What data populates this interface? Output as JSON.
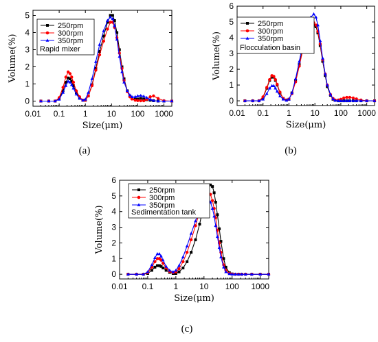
{
  "chart_data": [
    {
      "type": "line",
      "panel_label": "(a)",
      "xlabel": "Size(μm)",
      "ylabel": "Volume(%)",
      "xscale": "log",
      "xlim": [
        0.01,
        2000
      ],
      "ylim": [
        -0.3,
        5.3
      ],
      "x_ticks": [
        "0.01",
        "0.1",
        "1",
        "10",
        "100",
        "1000"
      ],
      "y_ticks": [
        "0",
        "1",
        "2",
        "3",
        "4",
        "5"
      ],
      "legend_title": "Rapid mixer",
      "series": [
        {
          "name": "250rpm",
          "color": "#000000",
          "marker": "square",
          "x": [
            0.02,
            0.04,
            0.07,
            0.1,
            0.14,
            0.18,
            0.22,
            0.26,
            0.3,
            0.35,
            0.45,
            0.6,
            0.8,
            1,
            1.3,
            1.8,
            2.5,
            3.5,
            5,
            7,
            9,
            11,
            13,
            16,
            20,
            25,
            30,
            40,
            50,
            60,
            80,
            100,
            130,
            170,
            220,
            300,
            400,
            600,
            1000,
            2000
          ],
          "y": [
            0,
            0,
            0,
            0.15,
            0.6,
            1.1,
            1.35,
            1.3,
            1.15,
            0.9,
            0.5,
            0.2,
            0.05,
            0.05,
            0.3,
            0.95,
            1.9,
            2.9,
            3.8,
            4.6,
            5.0,
            5.0,
            4.7,
            4.0,
            3.0,
            2.0,
            1.3,
            0.6,
            0.3,
            0.15,
            0.1,
            0.12,
            0.15,
            0.12,
            0.08,
            0.05,
            0.02,
            0,
            0,
            0
          ]
        },
        {
          "name": "300rpm",
          "color": "#ff0000",
          "marker": "circle",
          "x": [
            0.02,
            0.04,
            0.07,
            0.1,
            0.14,
            0.18,
            0.22,
            0.26,
            0.3,
            0.35,
            0.45,
            0.6,
            0.8,
            1,
            1.3,
            1.8,
            2.5,
            3.5,
            5,
            7,
            9,
            11,
            13,
            16,
            20,
            25,
            30,
            40,
            50,
            60,
            80,
            100,
            130,
            170,
            220,
            300,
            400,
            600,
            1000,
            2000
          ],
          "y": [
            0,
            0,
            0,
            0.2,
            0.8,
            1.4,
            1.7,
            1.6,
            1.4,
            1.1,
            0.6,
            0.25,
            0.05,
            0.05,
            0.3,
            0.9,
            1.8,
            2.7,
            3.5,
            4.2,
            4.6,
            4.6,
            4.3,
            3.7,
            2.8,
            1.9,
            1.2,
            0.55,
            0.25,
            0.12,
            0.05,
            0.03,
            0.02,
            0.02,
            0.1,
            0.25,
            0.3,
            0.15,
            0.02,
            0
          ]
        },
        {
          "name": "350rpm",
          "color": "#0000ff",
          "marker": "triangle",
          "x": [
            0.02,
            0.04,
            0.07,
            0.1,
            0.14,
            0.18,
            0.22,
            0.26,
            0.3,
            0.35,
            0.45,
            0.6,
            0.8,
            1,
            1.3,
            1.8,
            2.5,
            3.5,
            5,
            7,
            9,
            11,
            13,
            16,
            20,
            25,
            30,
            40,
            50,
            60,
            80,
            100,
            130,
            170,
            220,
            300,
            400,
            600,
            1000,
            2000
          ],
          "y": [
            0,
            0,
            0,
            0.1,
            0.5,
            0.9,
            1.15,
            1.1,
            0.95,
            0.75,
            0.4,
            0.15,
            0.05,
            0.1,
            0.5,
            1.3,
            2.3,
            3.3,
            4.1,
            4.7,
            4.9,
            4.8,
            4.4,
            3.6,
            2.6,
            1.7,
            1.1,
            0.6,
            0.35,
            0.25,
            0.25,
            0.3,
            0.32,
            0.28,
            0.2,
            0.1,
            0.03,
            0,
            0,
            0
          ]
        }
      ]
    },
    {
      "type": "line",
      "panel_label": "(b)",
      "xlabel": "Size(μm)",
      "ylabel": "Volume(%)",
      "xscale": "log",
      "xlim": [
        0.01,
        2000
      ],
      "ylim": [
        -0.3,
        6
      ],
      "x_ticks": [
        "0.01",
        "0.1",
        "1",
        "10",
        "100",
        "1000"
      ],
      "y_ticks": [
        "0",
        "1",
        "2",
        "3",
        "4",
        "5",
        "6"
      ],
      "legend_title": "Flocculation basin",
      "series": [
        {
          "name": "250rpm",
          "color": "#000000",
          "marker": "square",
          "x": [
            0.02,
            0.04,
            0.07,
            0.1,
            0.14,
            0.18,
            0.22,
            0.26,
            0.3,
            0.35,
            0.45,
            0.6,
            0.8,
            1,
            1.3,
            1.8,
            2.5,
            3.5,
            5,
            7,
            9,
            11,
            13,
            16,
            20,
            25,
            30,
            40,
            50,
            60,
            80,
            100,
            130,
            170,
            220,
            300,
            400,
            600,
            1000,
            2000
          ],
          "y": [
            0,
            0,
            0,
            0.2,
            0.8,
            1.3,
            1.5,
            1.5,
            1.3,
            1.0,
            0.5,
            0.15,
            0.05,
            0.1,
            0.5,
            1.3,
            2.3,
            3.4,
            4.2,
            4.7,
            4.8,
            4.7,
            4.3,
            3.5,
            2.5,
            1.6,
            0.9,
            0.35,
            0.1,
            0.03,
            0,
            0,
            0,
            0,
            0,
            0,
            0,
            0,
            0,
            0
          ]
        },
        {
          "name": "300rpm",
          "color": "#ff0000",
          "marker": "circle",
          "x": [
            0.02,
            0.04,
            0.07,
            0.1,
            0.14,
            0.18,
            0.22,
            0.26,
            0.3,
            0.35,
            0.45,
            0.6,
            0.8,
            1,
            1.3,
            1.8,
            2.5,
            3.5,
            5,
            7,
            9,
            11,
            13,
            16,
            20,
            25,
            30,
            40,
            50,
            60,
            80,
            100,
            130,
            170,
            220,
            300,
            400,
            600,
            1000,
            2000
          ],
          "y": [
            0,
            0,
            0,
            0.25,
            0.85,
            1.35,
            1.6,
            1.55,
            1.35,
            1.05,
            0.55,
            0.15,
            0.05,
            0.1,
            0.45,
            1.2,
            2.2,
            3.3,
            4.2,
            4.8,
            4.95,
            4.8,
            4.4,
            3.6,
            2.6,
            1.7,
            1.0,
            0.4,
            0.15,
            0.05,
            0.05,
            0.1,
            0.18,
            0.22,
            0.22,
            0.18,
            0.12,
            0.05,
            0,
            0
          ]
        },
        {
          "name": "350rpm",
          "color": "#0000ff",
          "marker": "triangle",
          "x": [
            0.02,
            0.04,
            0.07,
            0.1,
            0.14,
            0.18,
            0.22,
            0.26,
            0.3,
            0.35,
            0.45,
            0.6,
            0.8,
            1,
            1.3,
            1.8,
            2.5,
            3.5,
            5,
            7,
            9,
            11,
            13,
            16,
            20,
            25,
            30,
            40,
            50,
            60,
            80,
            100,
            130,
            170,
            220,
            300,
            400,
            600,
            1000,
            2000
          ],
          "y": [
            0,
            0,
            0,
            0.1,
            0.45,
            0.8,
            0.95,
            0.95,
            0.8,
            0.6,
            0.3,
            0.1,
            0.03,
            0.1,
            0.5,
            1.4,
            2.5,
            3.7,
            4.6,
            5.3,
            5.5,
            5.3,
            4.8,
            3.8,
            2.7,
            1.7,
            1.0,
            0.4,
            0.12,
            0.03,
            0,
            0,
            0,
            0,
            0,
            0,
            0,
            0,
            0,
            0
          ]
        }
      ]
    },
    {
      "type": "line",
      "panel_label": "(c)",
      "xlabel": "Size(μm)",
      "ylabel": "Volume(%)",
      "xscale": "log",
      "xlim": [
        0.01,
        2000
      ],
      "ylim": [
        -0.3,
        6
      ],
      "x_ticks": [
        "0.01",
        "0.1",
        "1",
        "10",
        "100",
        "1000"
      ],
      "y_ticks": [
        "0",
        "1",
        "2",
        "3",
        "4",
        "5",
        "6"
      ],
      "legend_title": "Sedimentation tank",
      "series": [
        {
          "name": "250rpm",
          "color": "#000000",
          "marker": "square",
          "x": [
            0.02,
            0.04,
            0.07,
            0.1,
            0.14,
            0.18,
            0.22,
            0.26,
            0.3,
            0.35,
            0.45,
            0.6,
            0.8,
            1,
            1.3,
            1.8,
            2.5,
            3.5,
            5,
            7,
            9,
            11,
            14,
            17,
            20,
            23,
            26,
            30,
            35,
            40,
            50,
            60,
            80,
            100,
            130,
            170,
            220,
            300,
            500,
            1000,
            2000
          ],
          "y": [
            0,
            0,
            0,
            0.05,
            0.25,
            0.45,
            0.55,
            0.55,
            0.5,
            0.4,
            0.25,
            0.12,
            0.05,
            0.05,
            0.15,
            0.4,
            0.8,
            1.4,
            2.2,
            3.2,
            4.1,
            4.9,
            5.5,
            5.7,
            5.6,
            5.2,
            4.6,
            3.8,
            2.9,
            2.1,
            1.0,
            0.45,
            0.1,
            0.02,
            0,
            0,
            0,
            0,
            0,
            0,
            0
          ]
        },
        {
          "name": "300rpm",
          "color": "#ff0000",
          "marker": "circle",
          "x": [
            0.02,
            0.04,
            0.07,
            0.1,
            0.14,
            0.18,
            0.22,
            0.26,
            0.3,
            0.35,
            0.45,
            0.6,
            0.8,
            1,
            1.3,
            1.8,
            2.5,
            3.5,
            5,
            7,
            9,
            11,
            14,
            17,
            20,
            23,
            26,
            30,
            35,
            40,
            50,
            60,
            80,
            100,
            130,
            170,
            220,
            300,
            500,
            1000,
            2000
          ],
          "y": [
            0,
            0,
            0,
            0.1,
            0.45,
            0.8,
            1.0,
            1.0,
            0.9,
            0.7,
            0.4,
            0.18,
            0.1,
            0.15,
            0.35,
            0.8,
            1.4,
            2.2,
            3.1,
            4.0,
            4.7,
            5.1,
            5.3,
            5.1,
            4.7,
            4.2,
            3.6,
            2.8,
            2.0,
            1.4,
            0.6,
            0.25,
            0.05,
            0.01,
            0,
            0,
            0,
            0,
            0,
            0,
            0
          ]
        },
        {
          "name": "350rpm",
          "color": "#0000ff",
          "marker": "triangle",
          "x": [
            0.02,
            0.04,
            0.07,
            0.1,
            0.14,
            0.18,
            0.22,
            0.26,
            0.3,
            0.35,
            0.45,
            0.6,
            0.8,
            1,
            1.3,
            1.8,
            2.5,
            3.5,
            5,
            7,
            9,
            11,
            14,
            17,
            20,
            23,
            26,
            30,
            35,
            40,
            50,
            60,
            80,
            100,
            130,
            170,
            220,
            300,
            500,
            1000,
            2000
          ],
          "y": [
            0,
            0,
            0,
            0.15,
            0.6,
            1.05,
            1.3,
            1.3,
            1.15,
            0.9,
            0.5,
            0.25,
            0.15,
            0.25,
            0.55,
            1.1,
            1.8,
            2.6,
            3.4,
            4.1,
            4.6,
            4.9,
            4.9,
            4.6,
            4.2,
            3.7,
            3.1,
            2.4,
            1.7,
            1.1,
            0.45,
            0.15,
            0.03,
            0,
            0,
            0,
            0,
            0,
            0,
            0,
            0
          ]
        }
      ]
    }
  ]
}
